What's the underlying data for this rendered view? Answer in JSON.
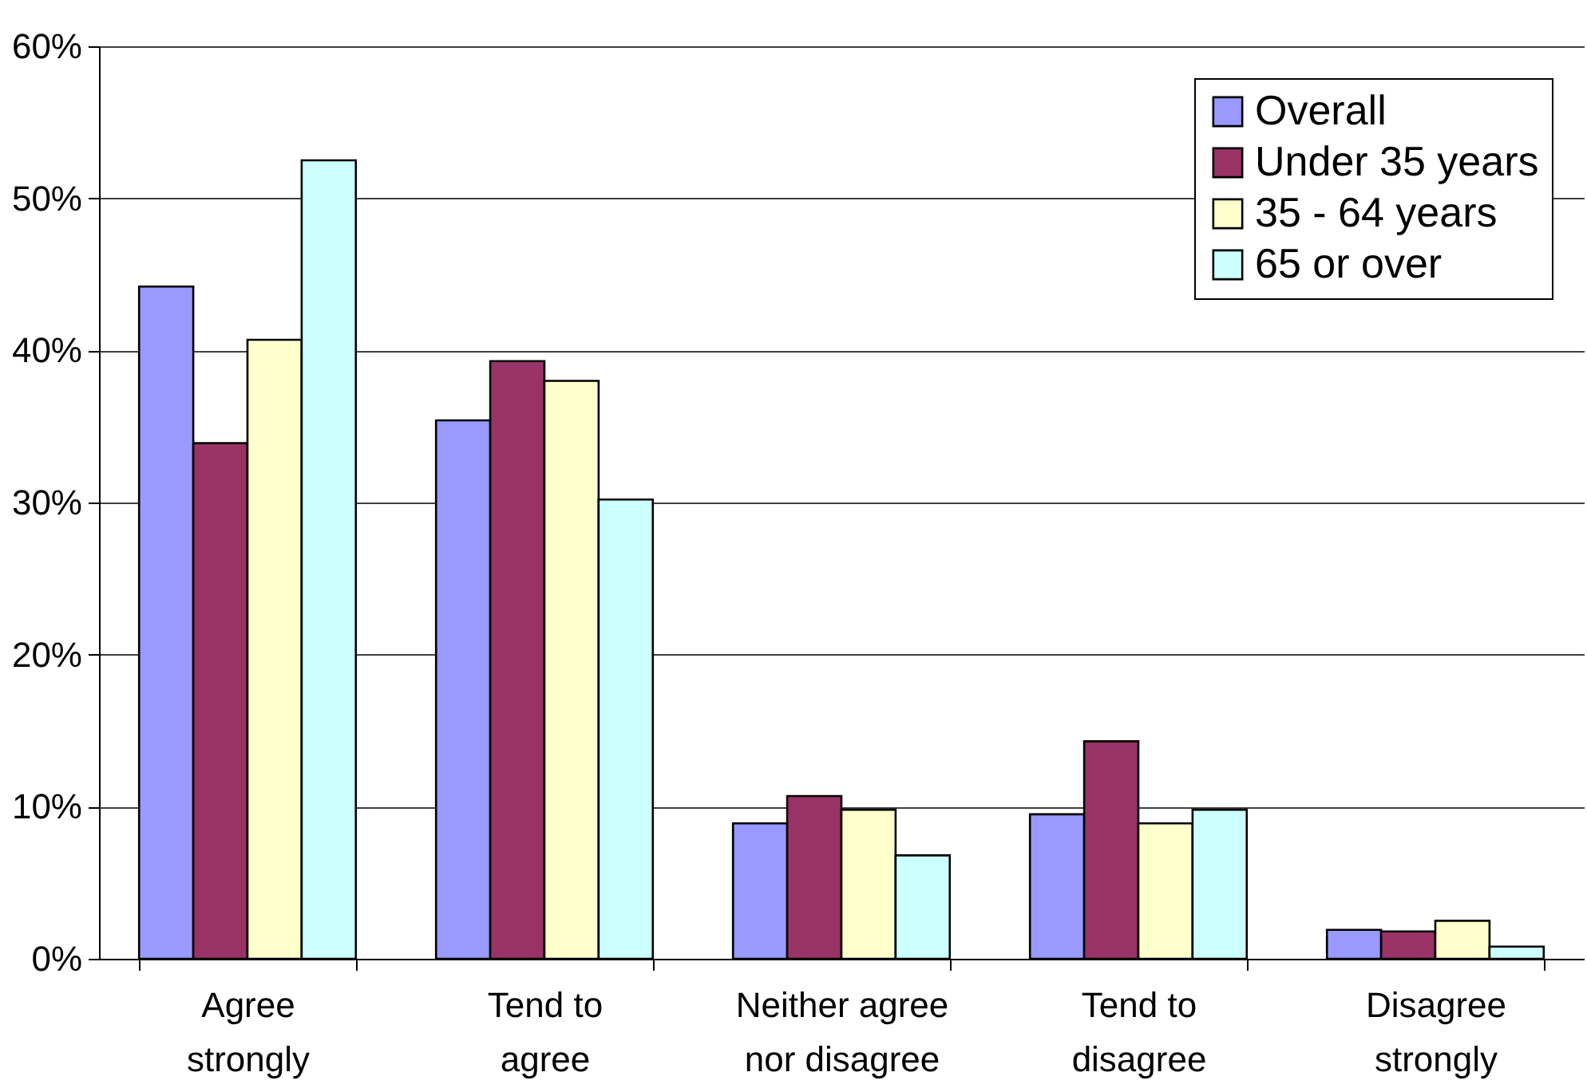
{
  "chart_data": {
    "type": "bar",
    "categories": [
      "Agree strongly",
      "Tend to agree",
      "Neither agree nor disagree",
      "Tend to disagree",
      "Disagree strongly"
    ],
    "series": [
      {
        "name": "Overall",
        "color": "#9999ff",
        "values": [
          44.2,
          35.4,
          8.9,
          9.5,
          1.9
        ]
      },
      {
        "name": "Under 35 years",
        "color": "#993366",
        "values": [
          33.9,
          39.3,
          10.7,
          14.3,
          1.8
        ]
      },
      {
        "name": "35 - 64 years",
        "color": "#ffffcc",
        "values": [
          40.7,
          38.0,
          9.8,
          8.9,
          2.5
        ]
      },
      {
        "name": "65 or over",
        "color": "#ccffff",
        "values": [
          52.5,
          30.2,
          6.8,
          9.8,
          0.8
        ]
      }
    ],
    "ylim": [
      0,
      60
    ],
    "yticks": [
      {
        "value": 0,
        "label": "0%"
      },
      {
        "value": 10,
        "label": "10%"
      },
      {
        "value": 20,
        "label": "20%"
      },
      {
        "value": 30,
        "label": "30%"
      },
      {
        "value": 40,
        "label": "40%"
      },
      {
        "value": 50,
        "label": "50%"
      },
      {
        "value": 60,
        "label": "60%"
      }
    ],
    "grid": "y",
    "legend": "top right"
  }
}
